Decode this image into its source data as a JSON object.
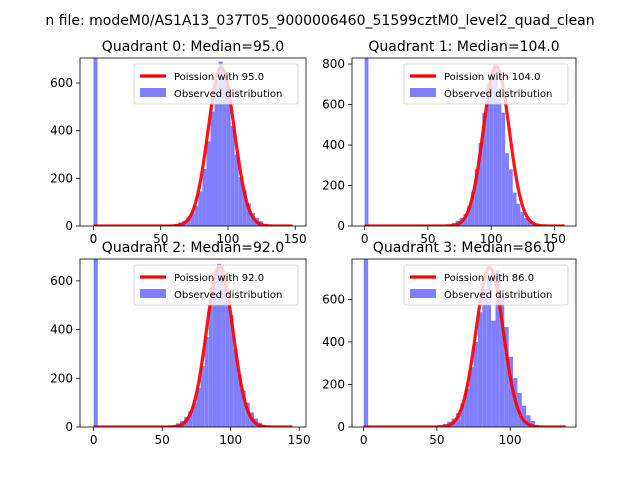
{
  "figure": {
    "suptitle": "n file: modeM0/AS1A13_037T05_9000006460_51599cztM0_level2_quad_clean"
  },
  "chart_data": [
    {
      "type": "bar",
      "title": "Quadrant 0: Median=95.0",
      "median": 95.0,
      "xlim": [
        -10,
        158
      ],
      "ylim": [
        0,
        705
      ],
      "xticks": [
        0,
        50,
        100,
        150
      ],
      "yticks": [
        0,
        200,
        400,
        600
      ],
      "legend": {
        "placement": "upper right",
        "entries": [
          "Poission with 95.0",
          "Observed distribution"
        ]
      },
      "zero_bin_value": 705,
      "hist_x": [
        60,
        63,
        66,
        69,
        72,
        75,
        78,
        81,
        84,
        87,
        90,
        93,
        96,
        99,
        102,
        105,
        108,
        111,
        114,
        117,
        120,
        123,
        126
      ],
      "hist_values": [
        8,
        15,
        22,
        35,
        55,
        85,
        145,
        240,
        355,
        480,
        610,
        690,
        650,
        590,
        420,
        300,
        205,
        150,
        95,
        55,
        35,
        20,
        8
      ],
      "poisson_peak": 665,
      "curve_range": [
        0,
        148
      ],
      "colors": {
        "curve": "#ff0000",
        "hist": "#7f7fff"
      }
    },
    {
      "type": "bar",
      "title": "Quadrant 1: Median=104.0",
      "median": 104.0,
      "xlim": [
        -10,
        167
      ],
      "ylim": [
        0,
        830
      ],
      "xticks": [
        0,
        50,
        100,
        150
      ],
      "yticks": [
        0,
        200,
        400,
        600,
        800
      ],
      "legend": {
        "placement": "upper right",
        "entries": [
          "Poission with 104.0",
          "Observed distribution"
        ]
      },
      "zero_bin_value": 830,
      "hist_x": [
        66,
        69,
        72,
        75,
        78,
        81,
        84,
        87,
        90,
        93,
        96,
        99,
        102,
        105,
        108,
        111,
        114,
        117,
        120,
        123,
        126,
        129,
        132,
        135
      ],
      "hist_values": [
        8,
        15,
        25,
        40,
        60,
        100,
        170,
        280,
        410,
        560,
        700,
        760,
        800,
        670,
        560,
        360,
        280,
        165,
        110,
        70,
        40,
        25,
        12,
        6
      ],
      "poisson_peak": 790,
      "curve_range": [
        0,
        158
      ],
      "colors": {
        "curve": "#ff0000",
        "hist": "#7f7fff"
      }
    },
    {
      "type": "bar",
      "title": "Quadrant 2: Median=92.0",
      "median": 92.0,
      "xlim": [
        -10,
        155
      ],
      "ylim": [
        0,
        690
      ],
      "xticks": [
        0,
        50,
        100,
        150
      ],
      "yticks": [
        0,
        200,
        400,
        600
      ],
      "legend": {
        "placement": "upper right",
        "entries": [
          "Poission with 92.0",
          "Observed distribution"
        ]
      },
      "zero_bin_value": 690,
      "hist_x": [
        57,
        60,
        63,
        66,
        69,
        72,
        75,
        78,
        81,
        84,
        87,
        90,
        93,
        96,
        99,
        102,
        105,
        108,
        111,
        114,
        117,
        120,
        123
      ],
      "hist_values": [
        8,
        15,
        25,
        40,
        65,
        100,
        160,
        250,
        370,
        500,
        610,
        670,
        640,
        560,
        460,
        320,
        215,
        150,
        100,
        60,
        35,
        18,
        8
      ],
      "poisson_peak": 660,
      "curve_range": [
        0,
        145
      ],
      "colors": {
        "curve": "#ff0000",
        "hist": "#7f7fff"
      }
    },
    {
      "type": "bar",
      "title": "Quadrant 3: Median=86.0",
      "median": 86.0,
      "xlim": [
        -8,
        145
      ],
      "ylim": [
        0,
        790
      ],
      "xticks": [
        0,
        50,
        100
      ],
      "yticks": [
        0,
        200,
        400,
        600
      ],
      "legend": {
        "placement": "upper right",
        "entries": [
          "Poission with 86.0",
          "Observed distribution"
        ]
      },
      "zero_bin_value": 790,
      "hist_x": [
        51,
        54,
        57,
        60,
        63,
        66,
        69,
        72,
        75,
        78,
        81,
        84,
        87,
        90,
        93,
        96,
        99,
        102,
        105,
        108,
        111,
        114,
        117
      ],
      "hist_values": [
        8,
        15,
        25,
        40,
        65,
        110,
        180,
        280,
        400,
        540,
        650,
        700,
        500,
        740,
        620,
        470,
        330,
        230,
        160,
        100,
        55,
        28,
        10
      ],
      "poisson_peak": 750,
      "curve_range": [
        0,
        138
      ],
      "colors": {
        "curve": "#ff0000",
        "hist": "#7f7fff"
      }
    }
  ]
}
